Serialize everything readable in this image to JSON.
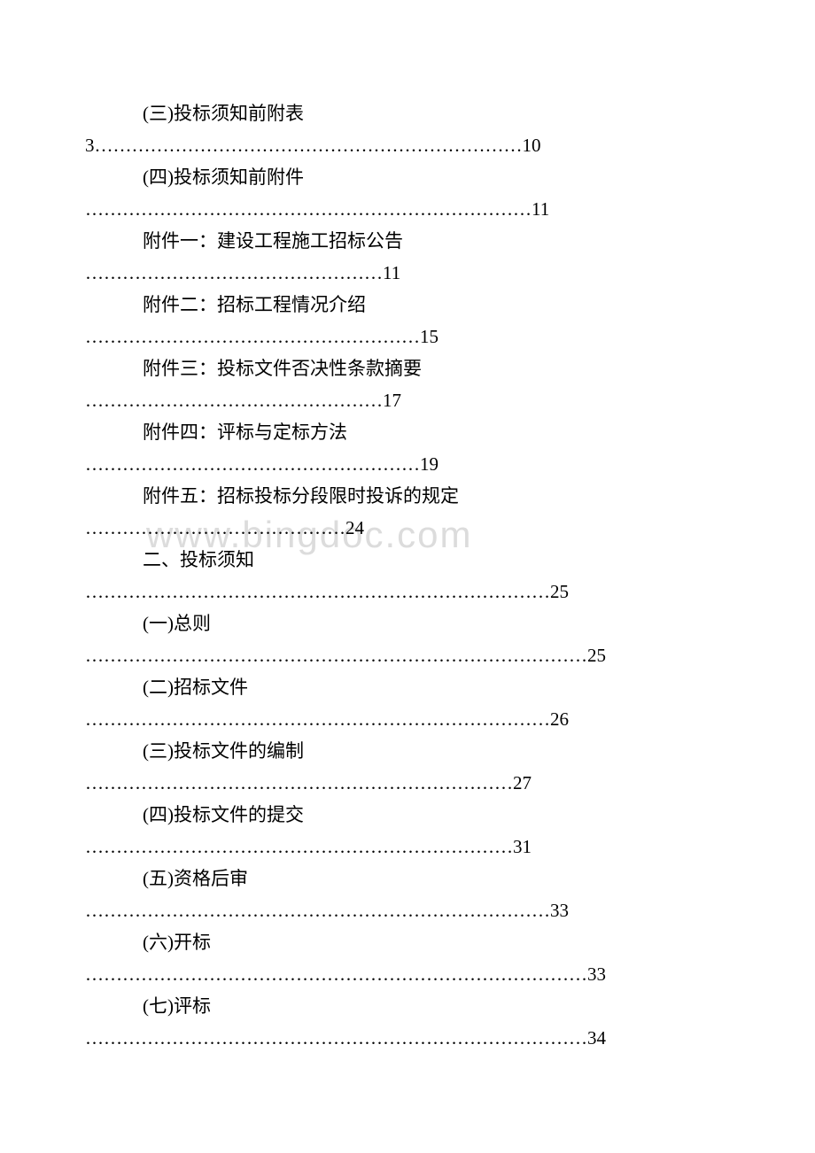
{
  "watermark": "www.bingdoc.com",
  "toc": {
    "items": [
      {
        "title": "(三)投标须知前附表",
        "leader": "3……………………………………………………………10"
      },
      {
        "title": "(四)投标须知前附件",
        "leader": "………………………………………………………………11"
      },
      {
        "title": "附件一：建设工程施工招标公告",
        "leader": "…………………………………………11"
      },
      {
        "title": "附件二：招标工程情况介绍",
        "leader": "………………………………………………15"
      },
      {
        "title": "附件三：投标文件否决性条款摘要",
        "leader": "…………………………………………17"
      },
      {
        "title": "附件四：评标与定标方法",
        "leader": "………………………………………………19"
      },
      {
        "title": "附件五：招标投标分段限时投诉的规定",
        "leader": "……………………………………24"
      },
      {
        "title": "二、投标须知",
        "leader": "…………………………………………………………………25"
      },
      {
        "title": "(一)总则",
        "leader": "………………………………………………………………………25"
      },
      {
        "title": "(二)招标文件",
        "leader": "…………………………………………………………………26"
      },
      {
        "title": "(三)投标文件的编制",
        "leader": "……………………………………………………………27"
      },
      {
        "title": "(四)投标文件的提交",
        "leader": "……………………………………………………………31"
      },
      {
        "title": "(五)资格后审",
        "leader": "…………………………………………………………………33"
      },
      {
        "title": "(六)开标",
        "leader": "………………………………………………………………………33"
      },
      {
        "title": "(七)评标",
        "leader": "………………………………………………………………………34"
      }
    ]
  },
  "styles": {
    "background_color": "#ffffff",
    "text_color": "#000000",
    "watermark_color": "#dcdcdc",
    "font_size": 21,
    "line_height": 36,
    "title_indent": 65,
    "watermark_fontsize": 42
  }
}
